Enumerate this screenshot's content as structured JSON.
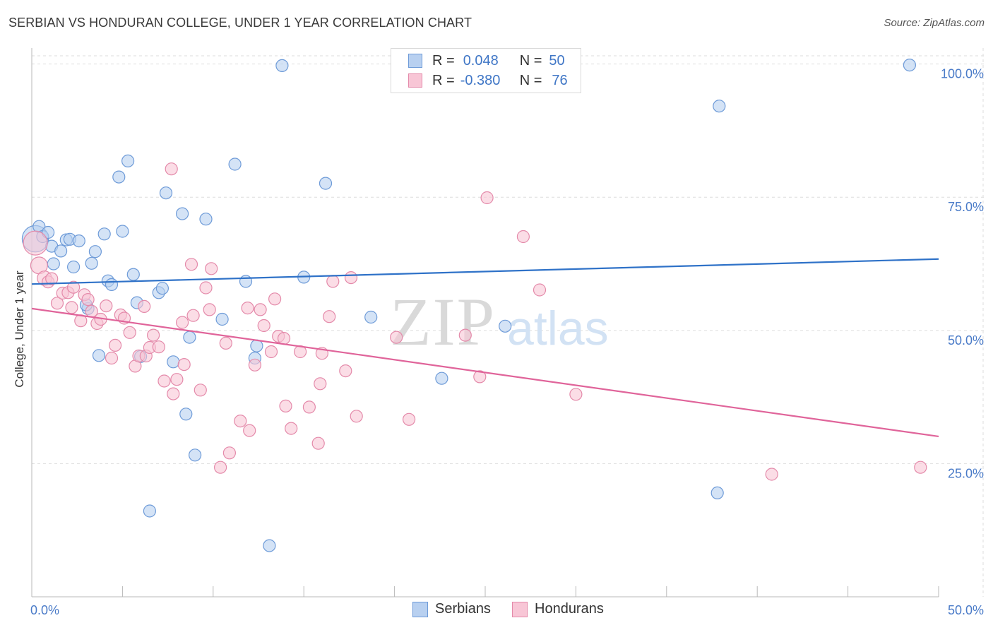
{
  "header": {
    "title": "SERBIAN VS HONDURAN COLLEGE, UNDER 1 YEAR CORRELATION CHART",
    "source": "Source: ZipAtlas.com"
  },
  "watermark": {
    "zip": "ZIP",
    "atlas": "atlas"
  },
  "legend": {
    "serbians": {
      "r_label": "R =",
      "r_value": "0.048",
      "n_label": "N =",
      "n_value": "50"
    },
    "hondurans": {
      "r_label": "R =",
      "r_value": "-0.380",
      "n_label": "N =",
      "n_value": "76"
    }
  },
  "colors": {
    "serbians_fill": "#b8d0f0",
    "serbians_stroke": "#6e9bd8",
    "serbians_line": "#2f72c8",
    "hondurans_fill": "#f8c6d6",
    "hondurans_stroke": "#e48aaa",
    "hondurans_line": "#e0649a",
    "tick_text": "#4a7bc8",
    "grid": "#dedede"
  },
  "chart_data": {
    "type": "scatter",
    "title": "SERBIAN VS HONDURAN COLLEGE, UNDER 1 YEAR CORRELATION CHART",
    "xlabel": "",
    "ylabel": "College, Under 1 year",
    "xlim": [
      0,
      50
    ],
    "ylim": [
      0,
      103
    ],
    "x_tick_labels": [
      {
        "value": 0,
        "label": "0.0%"
      },
      {
        "value": 50,
        "label": "50.0%"
      }
    ],
    "x_minor_ticks": [
      5,
      10,
      15,
      20,
      25,
      30,
      35,
      40,
      45
    ],
    "y_tick_labels": [
      {
        "value": 25,
        "label": "25.0%"
      },
      {
        "value": 50,
        "label": "50.0%"
      },
      {
        "value": 75,
        "label": "75.0%"
      },
      {
        "value": 100,
        "label": "100.0%"
      }
    ],
    "grid": true,
    "legend_position": "top-center",
    "series": [
      {
        "name": "Serbians",
        "color": "#6e9bd8",
        "trend": {
          "x": [
            0,
            50
          ],
          "y": [
            58.7,
            63.4
          ]
        },
        "points": [
          [
            0.2,
            67.2,
            22
          ],
          [
            0.4,
            69.5,
            10
          ],
          [
            0.6,
            67.6,
            10
          ],
          [
            0.9,
            68.4,
            10
          ],
          [
            1.1,
            65.8,
            10
          ],
          [
            1.6,
            64.9,
            10
          ],
          [
            1.9,
            67,
            10
          ],
          [
            2.1,
            67.1,
            10
          ],
          [
            2.6,
            66.8,
            10
          ],
          [
            2.3,
            61.9,
            10
          ],
          [
            3.3,
            62.6,
            10
          ],
          [
            3.5,
            64.8,
            10
          ],
          [
            4.0,
            68.1,
            10
          ],
          [
            4.2,
            59.3,
            10
          ],
          [
            4.4,
            58.6,
            10
          ],
          [
            5.0,
            68.6,
            10
          ],
          [
            4.8,
            78.8,
            10
          ],
          [
            5.3,
            81.8,
            10
          ],
          [
            5.6,
            60.5,
            10
          ],
          [
            5.8,
            55.2,
            10
          ],
          [
            6.0,
            45.1,
            10
          ],
          [
            7.0,
            57.1,
            10
          ],
          [
            7.2,
            57.9,
            10
          ],
          [
            7.4,
            75.8,
            10
          ],
          [
            7.8,
            44.1,
            10
          ],
          [
            8.3,
            71.9,
            10
          ],
          [
            8.7,
            48.7,
            10
          ],
          [
            8.5,
            34.3,
            10
          ],
          [
            9.0,
            26.6,
            10
          ],
          [
            9.6,
            70.9,
            10
          ],
          [
            10.5,
            52.1,
            10
          ],
          [
            11.2,
            81.2,
            10
          ],
          [
            11.8,
            59.2,
            10
          ],
          [
            12.3,
            44.8,
            10
          ],
          [
            12.4,
            47.1,
            10
          ],
          [
            13.8,
            99.7,
            10
          ],
          [
            15.0,
            60,
            10
          ],
          [
            16.2,
            77.6,
            10
          ],
          [
            18.7,
            52.5,
            10
          ],
          [
            22.6,
            41,
            10
          ],
          [
            26.1,
            50.8,
            10
          ],
          [
            37.8,
            19.5,
            10
          ],
          [
            37.9,
            92.1,
            10
          ],
          [
            48.4,
            99.8,
            10
          ],
          [
            6.5,
            16.1,
            10
          ],
          [
            13.1,
            9.6,
            10
          ],
          [
            3.1,
            54.1,
            10
          ],
          [
            3.7,
            45.3,
            10
          ],
          [
            3.0,
            54.8,
            10
          ],
          [
            1.2,
            62.5,
            10
          ]
        ]
      },
      {
        "name": "Hondurans",
        "color": "#e48aaa",
        "trend": {
          "x": [
            0,
            50
          ],
          "y": [
            54.1,
            30.1
          ]
        },
        "points": [
          [
            0.2,
            66.4,
            20
          ],
          [
            0.4,
            62.2,
            14
          ],
          [
            0.7,
            59.8,
            12
          ],
          [
            0.9,
            59.1,
            10
          ],
          [
            1.1,
            59.7,
            10
          ],
          [
            1.4,
            55.1,
            10
          ],
          [
            1.7,
            57,
            10
          ],
          [
            2.0,
            57.1,
            10
          ],
          [
            2.2,
            54.3,
            10
          ],
          [
            2.3,
            58.1,
            10
          ],
          [
            2.7,
            51.8,
            10
          ],
          [
            2.9,
            56.7,
            10
          ],
          [
            3.1,
            55.8,
            10
          ],
          [
            3.3,
            53.6,
            10
          ],
          [
            3.6,
            51.3,
            10
          ],
          [
            3.8,
            52.1,
            10
          ],
          [
            4.1,
            54.6,
            10
          ],
          [
            4.4,
            44.8,
            10
          ],
          [
            4.6,
            47.2,
            10
          ],
          [
            4.9,
            52.9,
            10
          ],
          [
            5.1,
            52.3,
            10
          ],
          [
            5.4,
            49.6,
            10
          ],
          [
            5.7,
            43.3,
            10
          ],
          [
            5.9,
            45.2,
            10
          ],
          [
            6.2,
            54.5,
            10
          ],
          [
            6.3,
            45.2,
            10
          ],
          [
            6.5,
            46.8,
            10
          ],
          [
            6.7,
            49.1,
            10
          ],
          [
            7.0,
            46.9,
            10
          ],
          [
            7.3,
            40.5,
            10
          ],
          [
            7.7,
            80.3,
            10
          ],
          [
            7.8,
            38.1,
            10
          ],
          [
            8.0,
            40.8,
            10
          ],
          [
            8.3,
            51.5,
            10
          ],
          [
            8.4,
            43.6,
            10
          ],
          [
            8.8,
            62.4,
            10
          ],
          [
            8.9,
            52.8,
            10
          ],
          [
            9.3,
            38.8,
            10
          ],
          [
            9.6,
            58,
            10
          ],
          [
            9.8,
            53.9,
            10
          ],
          [
            9.9,
            61.6,
            10
          ],
          [
            10.4,
            24.3,
            10
          ],
          [
            10.7,
            47.6,
            10
          ],
          [
            10.9,
            27,
            10
          ],
          [
            11.5,
            33,
            10
          ],
          [
            11.9,
            54.2,
            10
          ],
          [
            12.0,
            31.2,
            10
          ],
          [
            12.3,
            43.5,
            10
          ],
          [
            12.6,
            53.9,
            10
          ],
          [
            12.8,
            50.9,
            10
          ],
          [
            13.2,
            46,
            10
          ],
          [
            13.4,
            55.9,
            10
          ],
          [
            13.6,
            48.9,
            10
          ],
          [
            13.9,
            48.5,
            10
          ],
          [
            14.0,
            35.8,
            10
          ],
          [
            14.3,
            31.6,
            10
          ],
          [
            14.8,
            46,
            10
          ],
          [
            15.3,
            35.6,
            10
          ],
          [
            15.8,
            28.8,
            10
          ],
          [
            15.9,
            40,
            10
          ],
          [
            16.0,
            45.7,
            10
          ],
          [
            16.4,
            52.6,
            10
          ],
          [
            16.6,
            59.2,
            10
          ],
          [
            17.3,
            42.4,
            10
          ],
          [
            17.6,
            59.9,
            10
          ],
          [
            17.9,
            33.9,
            10
          ],
          [
            20.1,
            48.7,
            10
          ],
          [
            20.8,
            33.3,
            10
          ],
          [
            23.9,
            49.1,
            10
          ],
          [
            24.7,
            41.3,
            10
          ],
          [
            25.1,
            74.9,
            10
          ],
          [
            27.1,
            67.6,
            10
          ],
          [
            28.0,
            57.6,
            10
          ],
          [
            30.0,
            38,
            10
          ],
          [
            40.8,
            23,
            10
          ],
          [
            49.0,
            24.3,
            10
          ]
        ]
      }
    ]
  },
  "bottom_legend": {
    "serbians_label": "Serbians",
    "hondurans_label": "Hondurans"
  }
}
